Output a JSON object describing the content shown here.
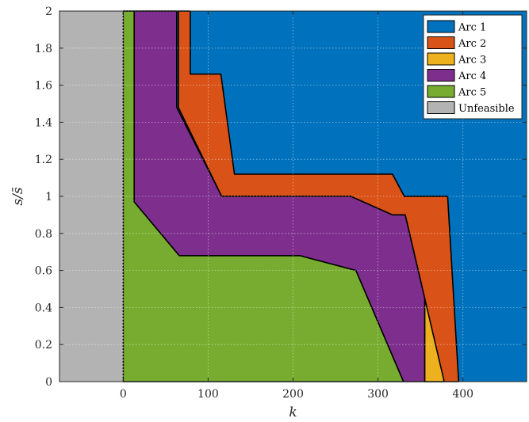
{
  "chart_data": {
    "type": "area",
    "xlabel": "k",
    "ylabel": "s/s̄",
    "xlim": [
      -75,
      475
    ],
    "ylim": [
      0,
      2
    ],
    "x_ticks": [
      0,
      100,
      200,
      300,
      400
    ],
    "x_tick_labels": [
      "0",
      "100",
      "200",
      "300",
      "400"
    ],
    "y_ticks": [
      0,
      0.2,
      0.4,
      0.6,
      0.8,
      1,
      1.2,
      1.4,
      1.6,
      1.8,
      2
    ],
    "y_tick_labels": [
      "0",
      "0.2",
      "0.4",
      "0.6",
      "0.8",
      "1",
      "1.2",
      "1.4",
      "1.6",
      "1.8",
      "2"
    ],
    "grid": true,
    "legend_position": "top-right",
    "regions": [
      {
        "name": "Arc 1",
        "color": "#0072BD",
        "polygon": [
          [
            -75,
            0
          ],
          [
            475,
            0
          ],
          [
            475,
            2
          ],
          [
            -75,
            2
          ]
        ]
      },
      {
        "name": "Arc 2",
        "color": "#D95319",
        "polygon": [
          [
            65,
            2
          ],
          [
            79,
            2
          ],
          [
            79,
            1.66
          ],
          [
            115,
            1.66
          ],
          [
            131,
            1.12
          ],
          [
            317,
            1.12
          ],
          [
            331,
            1.0
          ],
          [
            382,
            1.0
          ],
          [
            395,
            0
          ],
          [
            355,
            0
          ],
          [
            355,
            0.45
          ],
          [
            332,
            0.9
          ],
          [
            317,
            0.9
          ],
          [
            268,
            1.0
          ],
          [
            116,
            1.0
          ],
          [
            65,
            1.48
          ]
        ]
      },
      {
        "name": "Arc 3",
        "color": "#EDB120",
        "polygon": [
          [
            355,
            0
          ],
          [
            378,
            0
          ],
          [
            355,
            0.45
          ]
        ]
      },
      {
        "name": "Arc 4",
        "color": "#7E2F8E",
        "polygon": [
          [
            13,
            2
          ],
          [
            63,
            2
          ],
          [
            63,
            1.48
          ],
          [
            116,
            1.0
          ],
          [
            268,
            1.0
          ],
          [
            317,
            0.9
          ],
          [
            332,
            0.9
          ],
          [
            355,
            0.45
          ],
          [
            355,
            0
          ],
          [
            330,
            0
          ],
          [
            274,
            0.6
          ],
          [
            208,
            0.68
          ],
          [
            66,
            0.68
          ],
          [
            13,
            0.97
          ]
        ]
      },
      {
        "name": "Arc 5",
        "color": "#77AC30",
        "polygon": [
          [
            0,
            0
          ],
          [
            330,
            0
          ],
          [
            274,
            0.6
          ],
          [
            208,
            0.68
          ],
          [
            66,
            0.68
          ],
          [
            13,
            0.97
          ],
          [
            13,
            2
          ],
          [
            0,
            2
          ]
        ]
      },
      {
        "name": "Unfeasible",
        "color": "#B3B3B3",
        "polygon": [
          [
            -75,
            0
          ],
          [
            0,
            0
          ],
          [
            0,
            2
          ],
          [
            -75,
            2
          ]
        ]
      }
    ],
    "legend": [
      "Arc 1",
      "Arc 2",
      "Arc 3",
      "Arc 4",
      "Arc 5",
      "Unfeasible"
    ]
  }
}
